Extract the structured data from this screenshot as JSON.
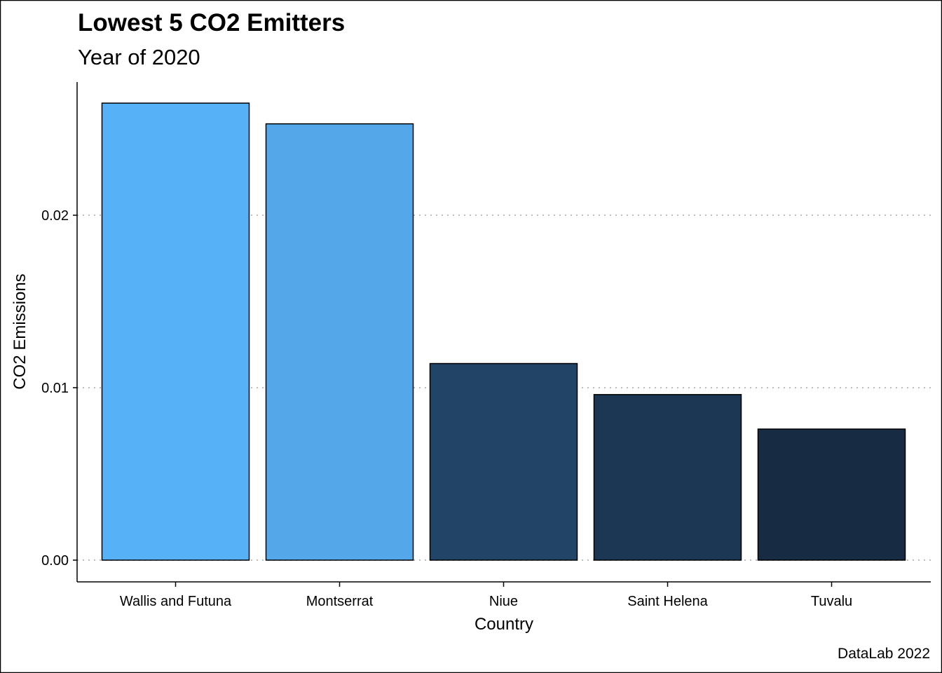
{
  "chart_data": {
    "type": "bar",
    "title": "Lowest 5 CO2 Emitters",
    "subtitle": "Year of 2020",
    "xlabel": "Country",
    "ylabel": "CO2 Emissions",
    "caption": "DataLab 2022",
    "categories": [
      "Wallis and Futuna",
      "Montserrat",
      "Niue",
      "Saint Helena",
      "Tuvalu"
    ],
    "values": [
      0.0265,
      0.0253,
      0.0114,
      0.0096,
      0.0076
    ],
    "colors": [
      "#56b1f7",
      "#54a7e8",
      "#224567",
      "#1c3754",
      "#172c43"
    ],
    "ylim": [
      0,
      0.0275
    ],
    "yticks": [
      0,
      0.01,
      0.02
    ],
    "ytick_labels": [
      "0.00",
      "0.01",
      "0.02"
    ],
    "grid": "horizontal dotted",
    "legend": "none"
  }
}
